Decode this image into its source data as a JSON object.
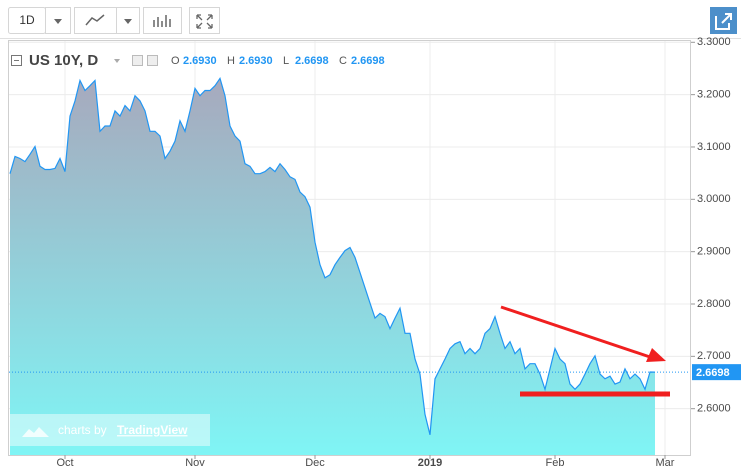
{
  "toolbar": {
    "interval": "1D"
  },
  "chart_data": {
    "type": "area",
    "title": "US 10Y, D",
    "ohlc": [
      {
        "label": "O",
        "value": "2.6930"
      },
      {
        "label": "H",
        "value": "2.6930"
      },
      {
        "label": "L",
        "value": "2.6698"
      },
      {
        "label": "C",
        "value": "2.6698"
      }
    ],
    "last_price": 2.6698,
    "watermark": {
      "prefix": "charts by",
      "brand": "TradingView"
    },
    "categories": [
      null,
      null,
      null,
      null,
      null,
      null,
      null,
      null,
      null,
      null,
      null,
      "Oct",
      null,
      null,
      null,
      null,
      null,
      null,
      null,
      null,
      null,
      null,
      null,
      null,
      null,
      null,
      null,
      null,
      null,
      null,
      null,
      null,
      null,
      null,
      null,
      null,
      null,
      "Nov",
      null,
      null,
      null,
      null,
      null,
      null,
      null,
      null,
      null,
      null,
      null,
      null,
      null,
      null,
      null,
      null,
      null,
      null,
      null,
      null,
      null,
      null,
      null,
      "Dec",
      null,
      null,
      null,
      null,
      null,
      null,
      null,
      null,
      null,
      null,
      null,
      null,
      null,
      null,
      null,
      null,
      null,
      null,
      null,
      null,
      null,
      null,
      "2019",
      null,
      null,
      null,
      null,
      null,
      null,
      null,
      null,
      null,
      null,
      null,
      null,
      null,
      null,
      null,
      null,
      null,
      null,
      null,
      null,
      null,
      null,
      null,
      null,
      "Feb",
      null,
      null,
      null,
      null,
      null,
      null,
      null,
      null,
      null,
      null,
      null,
      null,
      null,
      null,
      null,
      null,
      null,
      null,
      null,
      null,
      null,
      "Mar",
      null
    ],
    "series": [
      {
        "name": "US 10Y",
        "color": "#2196f3",
        "values": [
          3.049,
          3.082,
          3.078,
          3.072,
          3.086,
          3.101,
          3.063,
          3.057,
          3.057,
          3.059,
          3.078,
          3.053,
          3.159,
          3.188,
          3.227,
          3.208,
          3.217,
          3.227,
          3.13,
          3.14,
          3.14,
          3.169,
          3.159,
          3.179,
          3.169,
          3.198,
          3.188,
          3.169,
          3.13,
          3.13,
          3.121,
          3.078,
          3.092,
          3.111,
          3.15,
          3.13,
          3.169,
          3.212,
          3.198,
          3.208,
          3.208,
          3.217,
          3.231,
          3.198,
          3.14,
          3.121,
          3.111,
          3.068,
          3.063,
          3.049,
          3.049,
          3.053,
          3.061,
          3.053,
          3.068,
          3.057,
          3.043,
          3.038,
          3.014,
          3.005,
          2.985,
          2.918,
          2.875,
          2.85,
          2.856,
          2.875,
          2.889,
          2.902,
          2.908,
          2.889,
          2.86,
          2.831,
          2.802,
          2.773,
          2.782,
          2.776,
          2.753,
          2.773,
          2.792,
          2.744,
          2.744,
          2.695,
          2.666,
          2.589,
          2.55,
          2.657,
          2.676,
          2.695,
          2.715,
          2.724,
          2.728,
          2.705,
          2.715,
          2.705,
          2.715,
          2.744,
          2.753,
          2.776,
          2.744,
          2.715,
          2.728,
          2.705,
          2.715,
          2.676,
          2.686,
          2.686,
          2.666,
          2.637,
          2.676,
          2.715,
          2.695,
          2.686,
          2.647,
          2.637,
          2.647,
          2.666,
          2.686,
          2.701,
          2.666,
          2.657,
          2.662,
          2.647,
          2.651,
          2.676,
          2.657,
          2.666,
          2.657,
          2.637,
          2.67,
          2.6698,
          null,
          null,
          null
        ]
      }
    ],
    "ylim": [
      2.5115,
      3.3044
    ],
    "yticks": [
      {
        "value": 2.6,
        "label": "2.6000"
      },
      {
        "value": 2.7,
        "label": "2.7000"
      },
      {
        "value": 2.8,
        "label": "2.8000"
      },
      {
        "value": 2.9,
        "label": "2.9000"
      },
      {
        "value": 3.0,
        "label": "3.0000"
      },
      {
        "value": 3.1,
        "label": "3.1000"
      },
      {
        "value": 3.2,
        "label": "3.2000"
      },
      {
        "value": 3.3,
        "label": "3.3000"
      }
    ],
    "grid": true
  }
}
